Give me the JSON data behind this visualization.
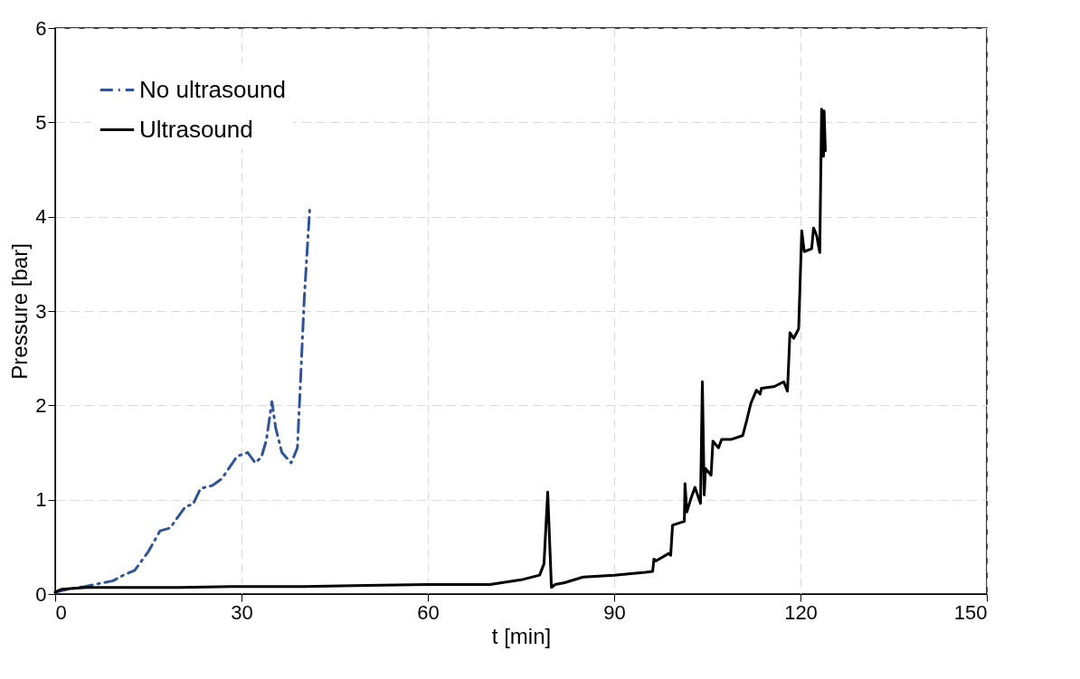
{
  "chart_data": {
    "type": "line",
    "xlabel": "t [min]",
    "ylabel": "Pressure [bar]",
    "xlim": [
      0,
      150
    ],
    "xticks": [
      0,
      30,
      60,
      90,
      120,
      150
    ],
    "ylim": [
      0,
      6
    ],
    "yticks": [
      0,
      1,
      2,
      3,
      4,
      5,
      6
    ],
    "grid": true,
    "legend": "top left",
    "series": [
      {
        "name": "No ultrasound",
        "color": "#2f5597",
        "line_style": "dashed",
        "x": [
          0,
          2,
          4.8,
          7,
          9.3,
          11,
          12.8,
          15,
          16.9,
          18.5,
          21,
          22.2,
          23.4,
          25.3,
          26.8,
          29.3,
          31,
          32.2,
          33.2,
          34,
          34.9,
          35.5,
          36.5,
          38,
          39,
          39.4,
          40.1,
          41
        ],
        "values": [
          0.02,
          0.05,
          0.08,
          0.11,
          0.14,
          0.2,
          0.25,
          0.45,
          0.67,
          0.7,
          0.93,
          0.95,
          1.12,
          1.15,
          1.22,
          1.46,
          1.5,
          1.39,
          1.45,
          1.63,
          2.04,
          1.76,
          1.5,
          1.39,
          1.55,
          2.11,
          3.13,
          4.1
        ]
      },
      {
        "name": "Ultrasound",
        "color": "#000000",
        "line_style": "solid",
        "x": [
          0,
          1,
          5,
          10,
          20,
          30,
          40,
          50,
          60,
          70,
          75,
          78,
          78.7,
          79.3,
          79.9,
          80.5,
          82,
          85,
          90,
          95,
          96.2,
          96.4,
          96.7,
          98.8,
          99.1,
          99.4,
          101.3,
          101.4,
          101.7,
          102.3,
          103,
          103.9,
          104.2,
          104.5,
          104.7,
          105.6,
          105.9,
          106.8,
          107.3,
          108.9,
          110.7,
          111.3,
          112,
          112.9,
          113.5,
          113.7,
          115.8,
          117.3,
          117.9,
          118.3,
          118.9,
          119.7,
          120.2,
          120.6,
          121.8,
          122.1,
          122.6,
          123.1,
          123.4,
          123.7,
          123.8,
          124
        ],
        "values": [
          0.02,
          0.05,
          0.07,
          0.07,
          0.07,
          0.08,
          0.08,
          0.09,
          0.1,
          0.1,
          0.15,
          0.2,
          0.32,
          1.08,
          0.07,
          0.1,
          0.12,
          0.18,
          0.2,
          0.23,
          0.24,
          0.37,
          0.35,
          0.43,
          0.41,
          0.73,
          0.77,
          1.17,
          0.87,
          1.0,
          1.13,
          0.96,
          2.25,
          1.05,
          1.33,
          1.26,
          1.62,
          1.55,
          1.64,
          1.64,
          1.68,
          1.83,
          2.02,
          2.16,
          2.12,
          2.18,
          2.2,
          2.25,
          2.15,
          2.77,
          2.71,
          2.81,
          3.85,
          3.63,
          3.66,
          3.88,
          3.8,
          3.62,
          5.14,
          4.64,
          5.12,
          4.7
        ]
      }
    ]
  }
}
